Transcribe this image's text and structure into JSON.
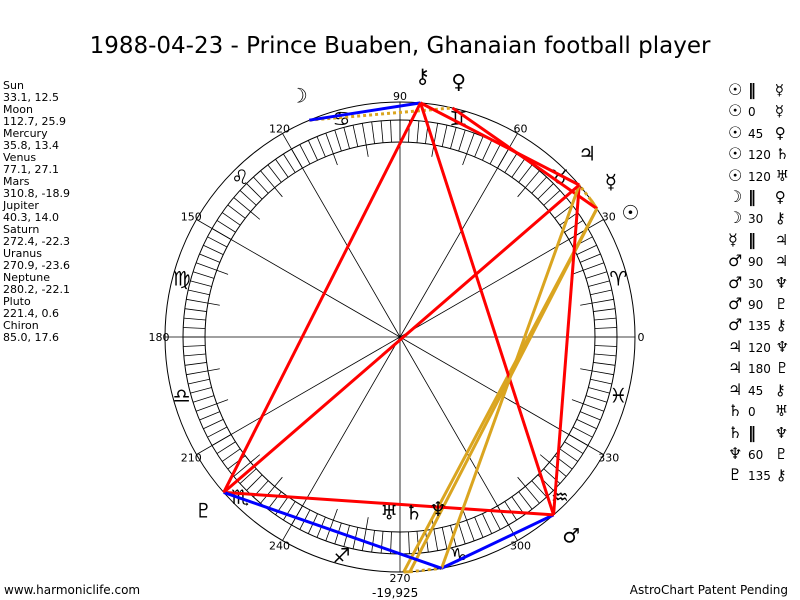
{
  "title": "1988-04-23 - Prince Buaben, Ghanaian football player",
  "bottom_label": "-19,925",
  "footer": {
    "left": "www.harmoniclife.com",
    "right": "AstroChart Patent Pending"
  },
  "planets": [
    {
      "name": "Sun",
      "coords": "33.1, 12.5",
      "lon": 33.1,
      "glyph": "☉"
    },
    {
      "name": "Moon",
      "coords": "112.7, 25.9",
      "lon": 112.7,
      "glyph": "☽"
    },
    {
      "name": "Mercury",
      "coords": "35.8, 13.4",
      "lon": 35.8,
      "glyph": "☿"
    },
    {
      "name": "Venus",
      "coords": "77.1, 27.1",
      "lon": 77.1,
      "glyph": "♀"
    },
    {
      "name": "Mars",
      "coords": "310.8, -18.9",
      "lon": 310.8,
      "glyph": "♂"
    },
    {
      "name": "Jupiter",
      "coords": "40.3, 14.0",
      "lon": 40.3,
      "glyph": "♃"
    },
    {
      "name": "Saturn",
      "coords": "272.4, -22.3",
      "lon": 272.4,
      "glyph": "♄"
    },
    {
      "name": "Uranus",
      "coords": "270.9, -23.6",
      "lon": 270.9,
      "glyph": "♅"
    },
    {
      "name": "Neptune",
      "coords": "280.2, -22.1",
      "lon": 280.2,
      "glyph": "♆"
    },
    {
      "name": "Pluto",
      "coords": "221.4, 0.6",
      "lon": 221.4,
      "glyph": "♇"
    },
    {
      "name": "Chiron",
      "coords": "85.0, 17.6",
      "lon": 85.0,
      "glyph": "⚷"
    }
  ],
  "aspects": [
    {
      "a": "Sun",
      "type": "II",
      "b": "Mercury"
    },
    {
      "a": "Sun",
      "type": "0",
      "b": "Mercury"
    },
    {
      "a": "Sun",
      "type": "45",
      "b": "Venus"
    },
    {
      "a": "Sun",
      "type": "120",
      "b": "Saturn"
    },
    {
      "a": "Sun",
      "type": "120",
      "b": "Uranus"
    },
    {
      "a": "Moon",
      "type": "II",
      "b": "Venus"
    },
    {
      "a": "Moon",
      "type": "30",
      "b": "Chiron"
    },
    {
      "a": "Mercury",
      "type": "II",
      "b": "Jupiter"
    },
    {
      "a": "Mars",
      "type": "90",
      "b": "Jupiter"
    },
    {
      "a": "Mars",
      "type": "30",
      "b": "Neptune"
    },
    {
      "a": "Mars",
      "type": "90",
      "b": "Pluto"
    },
    {
      "a": "Mars",
      "type": "135",
      "b": "Chiron"
    },
    {
      "a": "Jupiter",
      "type": "120",
      "b": "Neptune"
    },
    {
      "a": "Jupiter",
      "type": "180",
      "b": "Pluto"
    },
    {
      "a": "Jupiter",
      "type": "45",
      "b": "Chiron"
    },
    {
      "a": "Saturn",
      "type": "0",
      "b": "Uranus"
    },
    {
      "a": "Saturn",
      "type": "II",
      "b": "Neptune"
    },
    {
      "a": "Neptune",
      "type": "60",
      "b": "Pluto"
    },
    {
      "a": "Pluto",
      "type": "135",
      "b": "Chiron"
    }
  ],
  "aspect_colors": {
    "0": "#daa520",
    "120": "#daa520",
    "II": "#daa520",
    "30": "#0000ff",
    "60": "#0000ff",
    "45": "#ff0000",
    "90": "#ff0000",
    "135": "#ff0000",
    "180": "#ff0000"
  },
  "degree_labels": [
    "0",
    "30",
    "60",
    "90",
    "120",
    "150",
    "180",
    "210",
    "240",
    "270",
    "300",
    "330"
  ],
  "signs": [
    "♈",
    "♉",
    "♊",
    "♋",
    "♌",
    "♍",
    "♎",
    "♏",
    "♐",
    "♑",
    "♒",
    "♓"
  ]
}
